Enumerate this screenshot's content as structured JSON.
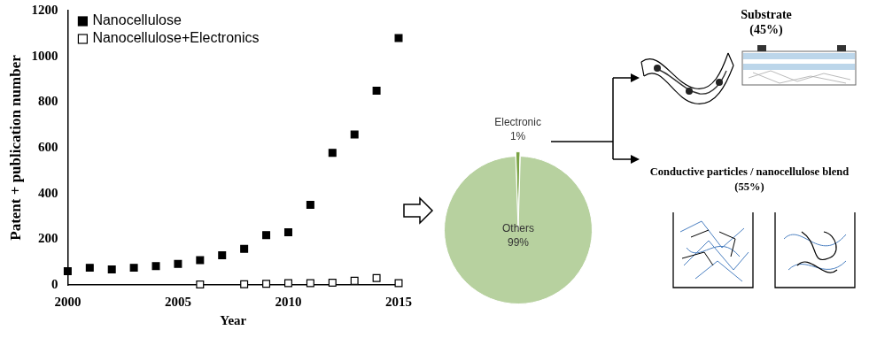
{
  "chart_data": [
    {
      "type": "scatter",
      "x": [
        2000,
        2001,
        2002,
        2003,
        2004,
        2005,
        2006,
        2007,
        2008,
        2009,
        2010,
        2011,
        2012,
        2013,
        2014,
        2015
      ],
      "series": [
        {
          "name": "Nanocellulose",
          "color": "#000000",
          "marker": "square",
          "values": [
            60,
            75,
            68,
            75,
            82,
            92,
            108,
            130,
            158,
            218,
            230,
            350,
            578,
            658,
            850,
            1080
          ]
        },
        {
          "name": "Nanocellulose+Electronics",
          "color": "#000000",
          "marker": "square_open",
          "values": [
            null,
            null,
            null,
            null,
            null,
            null,
            2,
            null,
            3,
            5,
            8,
            8,
            10,
            18,
            30,
            8
          ]
        }
      ],
      "x_label": "Year",
      "y_label": "Patent + publication number",
      "xlim": [
        2000,
        2015
      ],
      "xticks": [
        2000,
        2005,
        2010,
        2015
      ],
      "ylim": [
        0,
        1200
      ],
      "yticks": [
        0,
        200,
        400,
        600,
        800,
        1000,
        1200
      ],
      "grid": false,
      "legend": "upper left"
    },
    {
      "type": "pie",
      "categories": [
        "Electronic",
        "Others"
      ],
      "values": [
        1,
        99
      ],
      "value_labels": [
        "1%",
        "99%"
      ],
      "colors": [
        "#7aa344",
        "#b7d19f"
      ],
      "data_labels": true
    }
  ],
  "diagram": {
    "branches": [
      {
        "title": "Substrate",
        "share": "(45%)"
      },
      {
        "title": "Conductive particles / nanocellulose blend",
        "share": "(55%)"
      }
    ]
  }
}
